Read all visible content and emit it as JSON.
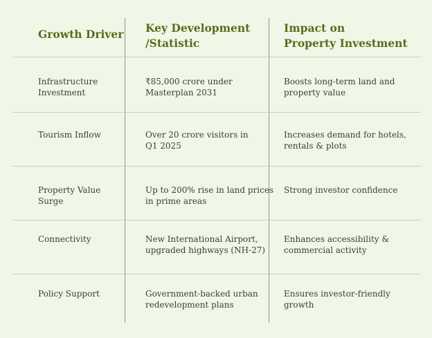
{
  "header": {
    "col1": "Growth Driver",
    "col2": "Key Development\n/Statistic",
    "col3": "Impact on\nProperty Investment"
  },
  "rows": [
    {
      "driver": "Infrastructure\nInvestment",
      "development": "₹85,000 crore under\nMasterplan 2031",
      "impact": "Boosts long-term land and\nproperty value"
    },
    {
      "driver": "Tourism Inflow",
      "development": "Over 20 crore visitors in\nQ1 2025",
      "impact": "Increases demand for hotels,\nrentals & plots"
    },
    {
      "driver": "Property Value\nSurge",
      "development": "Up to 200% rise in land prices\nin prime areas",
      "impact": "Strong investor confidence"
    },
    {
      "driver": "Connectivity",
      "development": "New International Airport,\nupgraded highways (NH-27)",
      "impact": "Enhances accessibility &\ncommercial activity"
    },
    {
      "driver": "Policy Support",
      "development": "Government-backed urban\nredevelopment plans",
      "impact": "Ensures investor-friendly\ngrowth"
    }
  ]
}
